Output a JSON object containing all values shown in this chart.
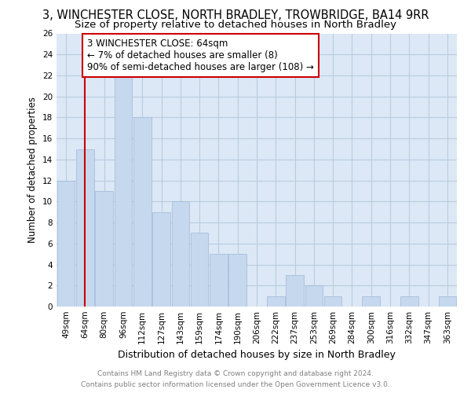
{
  "title": "3, WINCHESTER CLOSE, NORTH BRADLEY, TROWBRIDGE, BA14 9RR",
  "subtitle": "Size of property relative to detached houses in North Bradley",
  "xlabel": "Distribution of detached houses by size in North Bradley",
  "ylabel": "Number of detached properties",
  "categories": [
    "49sqm",
    "64sqm",
    "80sqm",
    "96sqm",
    "112sqm",
    "127sqm",
    "143sqm",
    "159sqm",
    "174sqm",
    "190sqm",
    "206sqm",
    "222sqm",
    "237sqm",
    "253sqm",
    "269sqm",
    "284sqm",
    "300sqm",
    "316sqm",
    "332sqm",
    "347sqm",
    "363sqm"
  ],
  "values": [
    12,
    15,
    11,
    22,
    18,
    9,
    10,
    7,
    5,
    5,
    0,
    1,
    3,
    2,
    1,
    0,
    1,
    0,
    1,
    0,
    1
  ],
  "bar_color": "#c5d8ee",
  "bar_edge_color": "#a0b8d8",
  "grid_color": "#b8cce0",
  "background_color": "#dce8f5",
  "vline_x": 1,
  "vline_color": "#cc0000",
  "annotation_text": "3 WINCHESTER CLOSE: 64sqm\n← 7% of detached houses are smaller (8)\n90% of semi-detached houses are larger (108) →",
  "annotation_box_color": "#ffffff",
  "annotation_box_edge_color": "#cc0000",
  "ylim": [
    0,
    26
  ],
  "yticks": [
    0,
    2,
    4,
    6,
    8,
    10,
    12,
    14,
    16,
    18,
    20,
    22,
    24,
    26
  ],
  "footer_line1": "Contains HM Land Registry data © Crown copyright and database right 2024.",
  "footer_line2": "Contains public sector information licensed under the Open Government Licence v3.0.",
  "title_fontsize": 10.5,
  "subtitle_fontsize": 9.5,
  "xlabel_fontsize": 9,
  "ylabel_fontsize": 8.5,
  "tick_fontsize": 7.5,
  "footer_fontsize": 6.5,
  "annotation_fontsize": 8.5
}
